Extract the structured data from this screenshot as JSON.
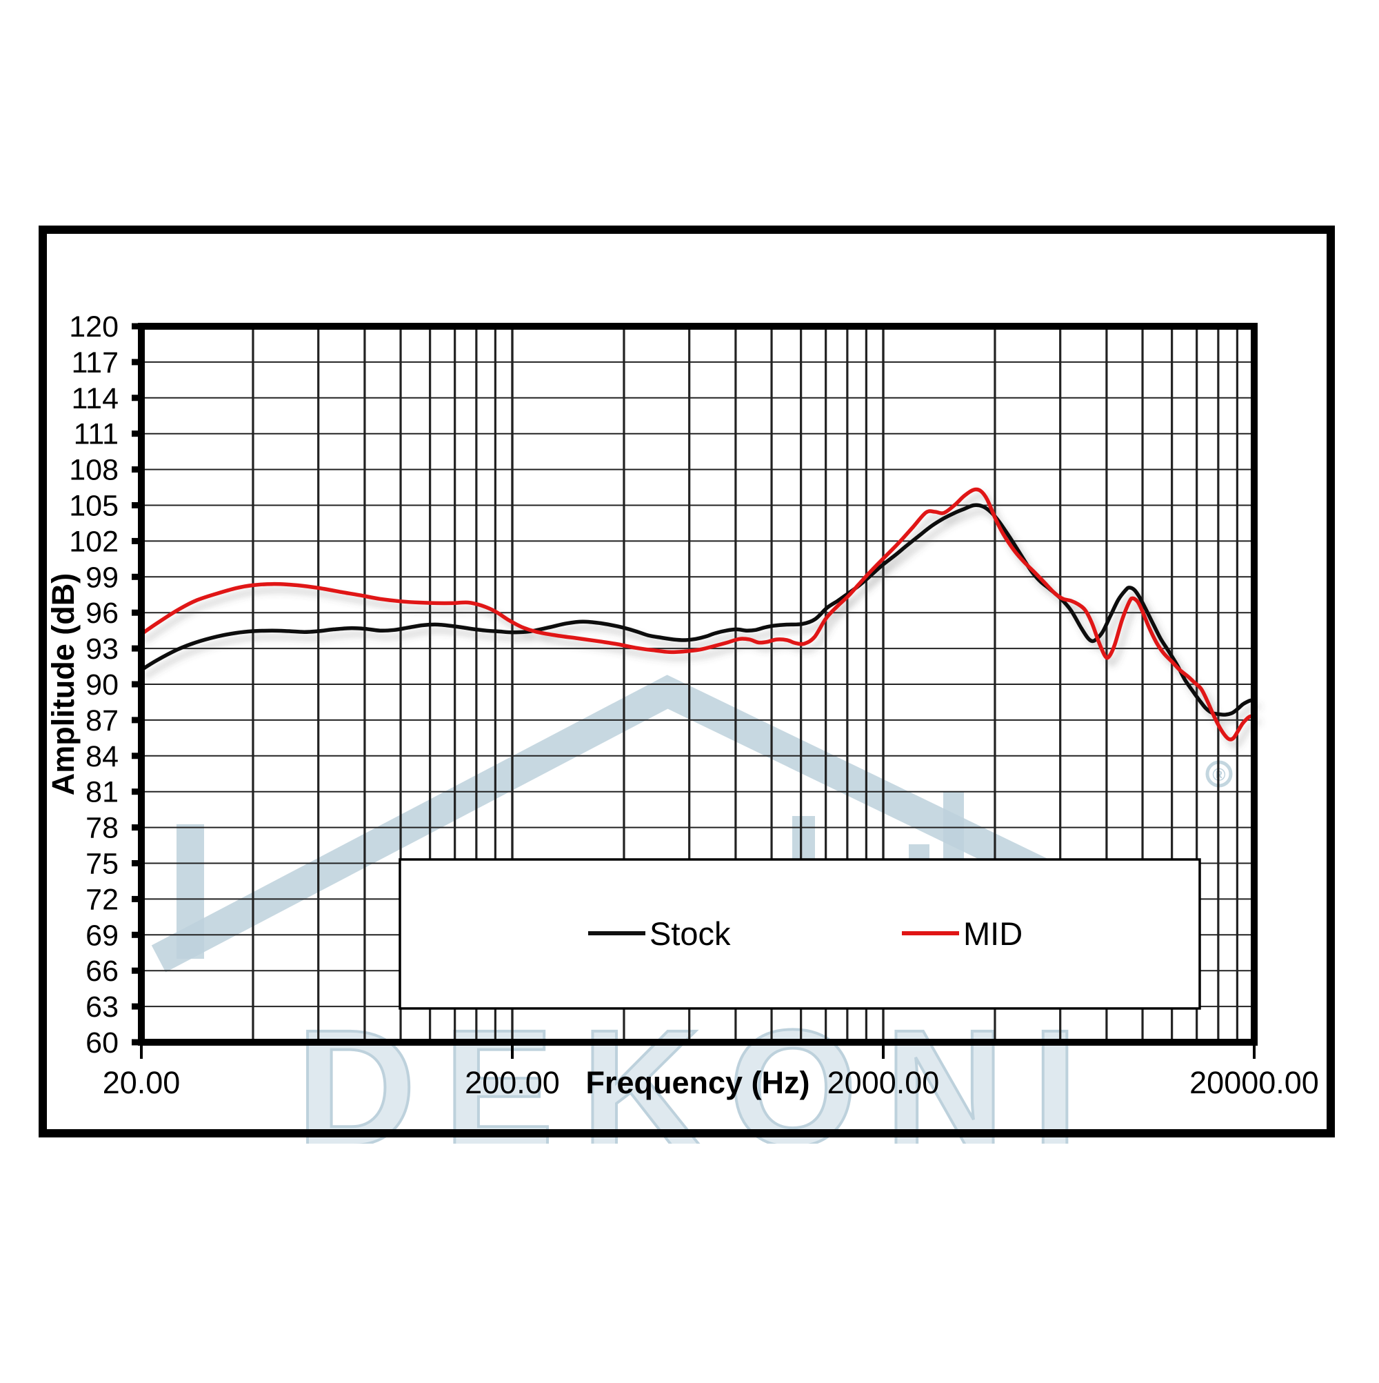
{
  "chart_data": {
    "type": "line",
    "title": "",
    "xlabel": "Frequency (Hz)",
    "ylabel": "Amplitude (dB)",
    "x_scale": "log",
    "xlim": [
      20,
      20000
    ],
    "ylim": [
      60,
      120
    ],
    "y_tick_step": 3,
    "y_tick_labels": [
      "120",
      "117",
      "114",
      "111",
      "108",
      "105",
      "102",
      "99",
      "96",
      "93",
      "90",
      "87",
      "84",
      "81",
      "78",
      "75",
      "72",
      "69",
      "66",
      "63",
      "60"
    ],
    "x_ticks": [
      {
        "value": 20,
        "label": "20.00"
      },
      {
        "value": 200,
        "label": "200.00"
      },
      {
        "value": 2000,
        "label": "2000.00"
      },
      {
        "value": 20000,
        "label": "20000.00"
      }
    ],
    "grid": "on",
    "legend_position": "bottom-center-boxed",
    "series": [
      {
        "name": "Stock",
        "color": "#101010",
        "points": [
          [
            20,
            91.2
          ],
          [
            22,
            92.0
          ],
          [
            25,
            92.9
          ],
          [
            28,
            93.5
          ],
          [
            32,
            94.0
          ],
          [
            36,
            94.3
          ],
          [
            40,
            94.45
          ],
          [
            45,
            94.5
          ],
          [
            50,
            94.45
          ],
          [
            55,
            94.38
          ],
          [
            60,
            94.45
          ],
          [
            66,
            94.6
          ],
          [
            73,
            94.7
          ],
          [
            80,
            94.65
          ],
          [
            88,
            94.5
          ],
          [
            96,
            94.55
          ],
          [
            105,
            94.75
          ],
          [
            115,
            94.95
          ],
          [
            126,
            95.0
          ],
          [
            140,
            94.85
          ],
          [
            155,
            94.65
          ],
          [
            170,
            94.5
          ],
          [
            185,
            94.42
          ],
          [
            200,
            94.35
          ],
          [
            222,
            94.42
          ],
          [
            250,
            94.75
          ],
          [
            280,
            95.1
          ],
          [
            310,
            95.25
          ],
          [
            345,
            95.12
          ],
          [
            385,
            94.85
          ],
          [
            425,
            94.5
          ],
          [
            465,
            94.1
          ],
          [
            505,
            93.9
          ],
          [
            545,
            93.75
          ],
          [
            585,
            93.7
          ],
          [
            625,
            93.8
          ],
          [
            665,
            94.0
          ],
          [
            705,
            94.28
          ],
          [
            755,
            94.5
          ],
          [
            805,
            94.6
          ],
          [
            855,
            94.5
          ],
          [
            905,
            94.55
          ],
          [
            955,
            94.75
          ],
          [
            1010,
            94.9
          ],
          [
            1100,
            95.0
          ],
          [
            1210,
            95.05
          ],
          [
            1310,
            95.45
          ],
          [
            1410,
            96.4
          ],
          [
            1510,
            97.0
          ],
          [
            1610,
            97.62
          ],
          [
            1710,
            98.2
          ],
          [
            1810,
            98.85
          ],
          [
            1910,
            99.5
          ],
          [
            2010,
            100.1
          ],
          [
            2160,
            100.85
          ],
          [
            2310,
            101.6
          ],
          [
            2510,
            102.5
          ],
          [
            2710,
            103.3
          ],
          [
            2910,
            103.9
          ],
          [
            3110,
            104.35
          ],
          [
            3310,
            104.7
          ],
          [
            3510,
            105.0
          ],
          [
            3710,
            104.9
          ],
          [
            3910,
            104.4
          ],
          [
            4110,
            103.6
          ],
          [
            4410,
            102.2
          ],
          [
            4710,
            100.8
          ],
          [
            5010,
            99.5
          ],
          [
            5310,
            98.6
          ],
          [
            5610,
            98.0
          ],
          [
            6010,
            97.2
          ],
          [
            6410,
            96.2
          ],
          [
            6810,
            94.8
          ],
          [
            7110,
            93.9
          ],
          [
            7310,
            93.62
          ],
          [
            7510,
            93.78
          ],
          [
            7810,
            94.4
          ],
          [
            8210,
            95.8
          ],
          [
            8610,
            97.1
          ],
          [
            9010,
            97.9
          ],
          [
            9210,
            98.1
          ],
          [
            9510,
            97.9
          ],
          [
            9810,
            97.3
          ],
          [
            10200,
            96.3
          ],
          [
            10700,
            95.0
          ],
          [
            11200,
            93.8
          ],
          [
            11800,
            92.7
          ],
          [
            12400,
            91.6
          ],
          [
            13000,
            90.4
          ],
          [
            13600,
            89.5
          ],
          [
            14200,
            88.7
          ],
          [
            14800,
            88.0
          ],
          [
            15400,
            87.6
          ],
          [
            16000,
            87.5
          ],
          [
            16700,
            87.45
          ],
          [
            17400,
            87.58
          ],
          [
            18000,
            87.9
          ],
          [
            18600,
            88.3
          ],
          [
            19200,
            88.55
          ],
          [
            19600,
            88.65
          ],
          [
            20000,
            88.65
          ]
        ]
      },
      {
        "name": "MID",
        "color": "#e01515",
        "points": [
          [
            20,
            94.2
          ],
          [
            22,
            95.1
          ],
          [
            25,
            96.2
          ],
          [
            28,
            97.0
          ],
          [
            32,
            97.6
          ],
          [
            36,
            98.05
          ],
          [
            40,
            98.3
          ],
          [
            45,
            98.4
          ],
          [
            50,
            98.35
          ],
          [
            56,
            98.2
          ],
          [
            62,
            98.0
          ],
          [
            70,
            97.7
          ],
          [
            78,
            97.45
          ],
          [
            88,
            97.15
          ],
          [
            100,
            96.95
          ],
          [
            112,
            96.85
          ],
          [
            125,
            96.8
          ],
          [
            138,
            96.8
          ],
          [
            152,
            96.85
          ],
          [
            165,
            96.6
          ],
          [
            180,
            96.1
          ],
          [
            195,
            95.4
          ],
          [
            212,
            94.8
          ],
          [
            232,
            94.4
          ],
          [
            262,
            94.1
          ],
          [
            300,
            93.85
          ],
          [
            342,
            93.6
          ],
          [
            385,
            93.35
          ],
          [
            430,
            93.05
          ],
          [
            480,
            92.85
          ],
          [
            530,
            92.7
          ],
          [
            582,
            92.75
          ],
          [
            640,
            92.9
          ],
          [
            700,
            93.2
          ],
          [
            760,
            93.5
          ],
          [
            820,
            93.8
          ],
          [
            872,
            93.75
          ],
          [
            922,
            93.5
          ],
          [
            972,
            93.55
          ],
          [
            1030,
            93.75
          ],
          [
            1100,
            93.7
          ],
          [
            1160,
            93.45
          ],
          [
            1225,
            93.4
          ],
          [
            1305,
            93.95
          ],
          [
            1400,
            95.5
          ],
          [
            1500,
            96.5
          ],
          [
            1610,
            97.4
          ],
          [
            1710,
            98.3
          ],
          [
            1810,
            99.15
          ],
          [
            1910,
            99.9
          ],
          [
            2010,
            100.6
          ],
          [
            2210,
            101.9
          ],
          [
            2410,
            103.2
          ],
          [
            2610,
            104.4
          ],
          [
            2760,
            104.45
          ],
          [
            2910,
            104.35
          ],
          [
            3110,
            105.0
          ],
          [
            3310,
            105.8
          ],
          [
            3510,
            106.3
          ],
          [
            3660,
            106.2
          ],
          [
            3810,
            105.5
          ],
          [
            4010,
            103.9
          ],
          [
            4210,
            102.6
          ],
          [
            4510,
            101.2
          ],
          [
            4810,
            100.2
          ],
          [
            5110,
            99.4
          ],
          [
            5410,
            98.6
          ],
          [
            5810,
            97.6
          ],
          [
            6110,
            97.15
          ],
          [
            6410,
            97.0
          ],
          [
            6710,
            96.7
          ],
          [
            7010,
            96.2
          ],
          [
            7310,
            95.1
          ],
          [
            7610,
            93.6
          ],
          [
            7910,
            92.4
          ],
          [
            8110,
            92.3
          ],
          [
            8410,
            93.3
          ],
          [
            8810,
            95.4
          ],
          [
            9210,
            96.9
          ],
          [
            9410,
            97.2
          ],
          [
            9710,
            96.9
          ],
          [
            10000,
            96.1
          ],
          [
            10400,
            94.8
          ],
          [
            10900,
            93.5
          ],
          [
            11400,
            92.6
          ],
          [
            12000,
            91.9
          ],
          [
            12600,
            91.2
          ],
          [
            13200,
            90.7
          ],
          [
            13800,
            90.15
          ],
          [
            14400,
            89.6
          ],
          [
            15000,
            88.5
          ],
          [
            15600,
            87.3
          ],
          [
            16200,
            86.3
          ],
          [
            16800,
            85.6
          ],
          [
            17200,
            85.38
          ],
          [
            17600,
            85.5
          ],
          [
            18100,
            86.1
          ],
          [
            18600,
            86.7
          ],
          [
            19100,
            87.1
          ],
          [
            19500,
            87.3
          ],
          [
            20000,
            87.35
          ]
        ]
      }
    ]
  },
  "legend": {
    "items": [
      {
        "label": "Stock",
        "color": "#101010"
      },
      {
        "label": "MID",
        "color": "#e01515"
      }
    ]
  },
  "watermark": {
    "text": "DEKONI",
    "registered_mark": "®",
    "color": "#bdd1dc",
    "fill": "#dfe9ef"
  },
  "colors": {
    "axis": "#000000",
    "grid": "#222222",
    "background": "#ffffff"
  }
}
